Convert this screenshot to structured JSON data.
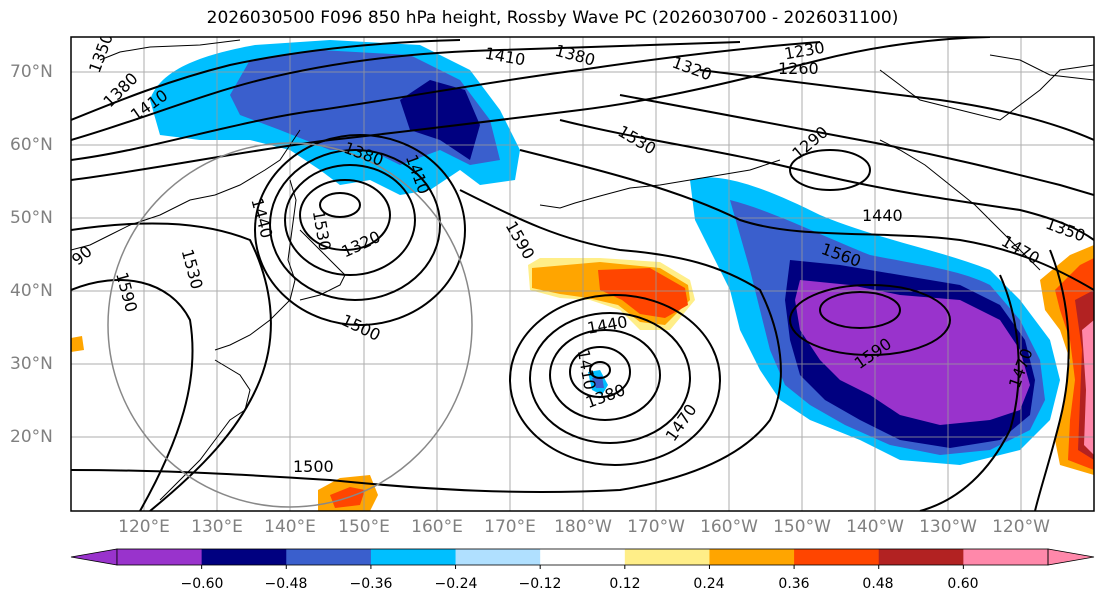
{
  "title": "2026030500 F096 850 hPa height, Rossby Wave PC (2026030700 - 2026031100)",
  "lat_labels": [
    "70°N",
    "60°N",
    "50°N",
    "40°N",
    "30°N",
    "20°N"
  ],
  "lon_labels": [
    "120°E",
    "130°E",
    "140°E",
    "150°E",
    "160°E",
    "170°E",
    "180°W",
    "170°W",
    "160°W",
    "150°W",
    "140°W",
    "130°W",
    "120°W"
  ],
  "colorbar": {
    "colors": [
      "#9933cc",
      "#000080",
      "#3a5fcd",
      "#00bfff",
      "#b0e0ff",
      "#ffffff",
      "#ffee88",
      "#ffa500",
      "#ff4500",
      "#b22222",
      "#ff88aa"
    ],
    "ticks": [
      "−0.60",
      "−0.48",
      "−0.36",
      "−0.24",
      "−0.12",
      "0.12",
      "0.24",
      "0.36",
      "0.48",
      "0.60"
    ]
  },
  "contour_labels": [
    "1350",
    "1380",
    "1410",
    "1410",
    "1380",
    "1320",
    "1230",
    "1260",
    "1290",
    "1530",
    "1380",
    "1410",
    "1320",
    "1440",
    "1530",
    "1590",
    "1590",
    "1530",
    "1500",
    "1440",
    "1410",
    "1380",
    "1470",
    "1560",
    "1590",
    "1470",
    "1440",
    "1350",
    "1470",
    "1500",
    "90"
  ]
}
